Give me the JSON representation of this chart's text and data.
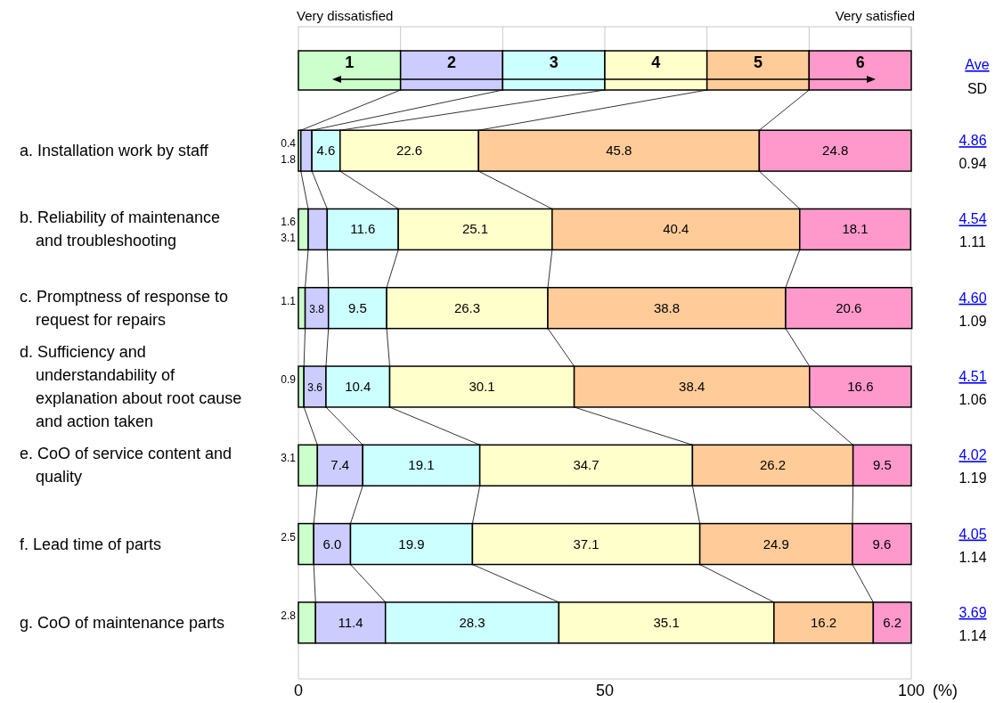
{
  "chart_data": {
    "type": "bar",
    "orientation": "horizontal",
    "stacked": true,
    "legend": "top",
    "grid": false,
    "categories": [
      "a. Installation work by staff",
      "b. Reliability of maintenance and troubleshooting",
      "c. Promptness of response to request for repairs",
      "d. Sufficiency and understandability of explanation about root cause and action taken",
      "e. CoO of service content and quality",
      "f.  Lead time of parts",
      "g. CoO of maintenance parts"
    ],
    "series": [
      {
        "name": "1",
        "color": "#ccffcc",
        "values": [
          0.4,
          1.6,
          1.1,
          0.9,
          3.1,
          2.5,
          2.8
        ],
        "value_labels": [
          "0.4",
          "1.6",
          "1.1",
          "0.9",
          "3.1",
          "2.5",
          "2.8"
        ]
      },
      {
        "name": "2",
        "color": "#ccccff",
        "values": [
          1.8,
          3.1,
          3.8,
          3.6,
          7.4,
          6.0,
          11.4
        ],
        "value_labels": [
          "1.8",
          "3.1",
          "3.8",
          "3.6",
          "7.4",
          "6.0",
          "11.4"
        ]
      },
      {
        "name": "3",
        "color": "#ccffff",
        "values": [
          4.6,
          11.6,
          9.5,
          10.4,
          19.1,
          19.9,
          28.3
        ],
        "value_labels": [
          "4.6",
          "11.6",
          "9.5",
          "10.4",
          "19.1",
          "19.9",
          "28.3"
        ]
      },
      {
        "name": "4",
        "color": "#ffffcc",
        "values": [
          22.6,
          25.1,
          26.3,
          30.1,
          34.7,
          37.1,
          35.1
        ],
        "value_labels": [
          "22.6",
          "25.1",
          "26.3",
          "30.1",
          "34.7",
          "37.1",
          "35.1"
        ]
      },
      {
        "name": "5",
        "color": "#ffcc99",
        "values": [
          45.8,
          40.4,
          38.8,
          38.4,
          26.2,
          24.9,
          16.2
        ],
        "value_labels": [
          "45.8",
          "40.4",
          "38.8",
          "38.4",
          "26.2",
          "24.9",
          "16.2"
        ]
      },
      {
        "name": "6",
        "color": "#ff99cc",
        "values": [
          24.8,
          18.1,
          20.6,
          16.6,
          9.5,
          9.6,
          6.2
        ],
        "value_labels": [
          "24.8",
          "18.1",
          "20.6",
          "16.6",
          "9.5",
          "9.6",
          "6.2"
        ]
      }
    ],
    "xlim": [
      0,
      100
    ],
    "xticks": [
      0,
      50,
      100
    ],
    "xlabel": "(%)",
    "annotations": [
      "Very dissatisfied",
      "Very satisfied",
      "Ave",
      "SD",
      "4.86",
      "0.94",
      "4.54",
      "1.11",
      "4.60",
      "1.09",
      "4.51",
      "1.06",
      "4.02",
      "1.19",
      "4.05",
      "1.14",
      "3.69",
      "1.14"
    ]
  }
}
